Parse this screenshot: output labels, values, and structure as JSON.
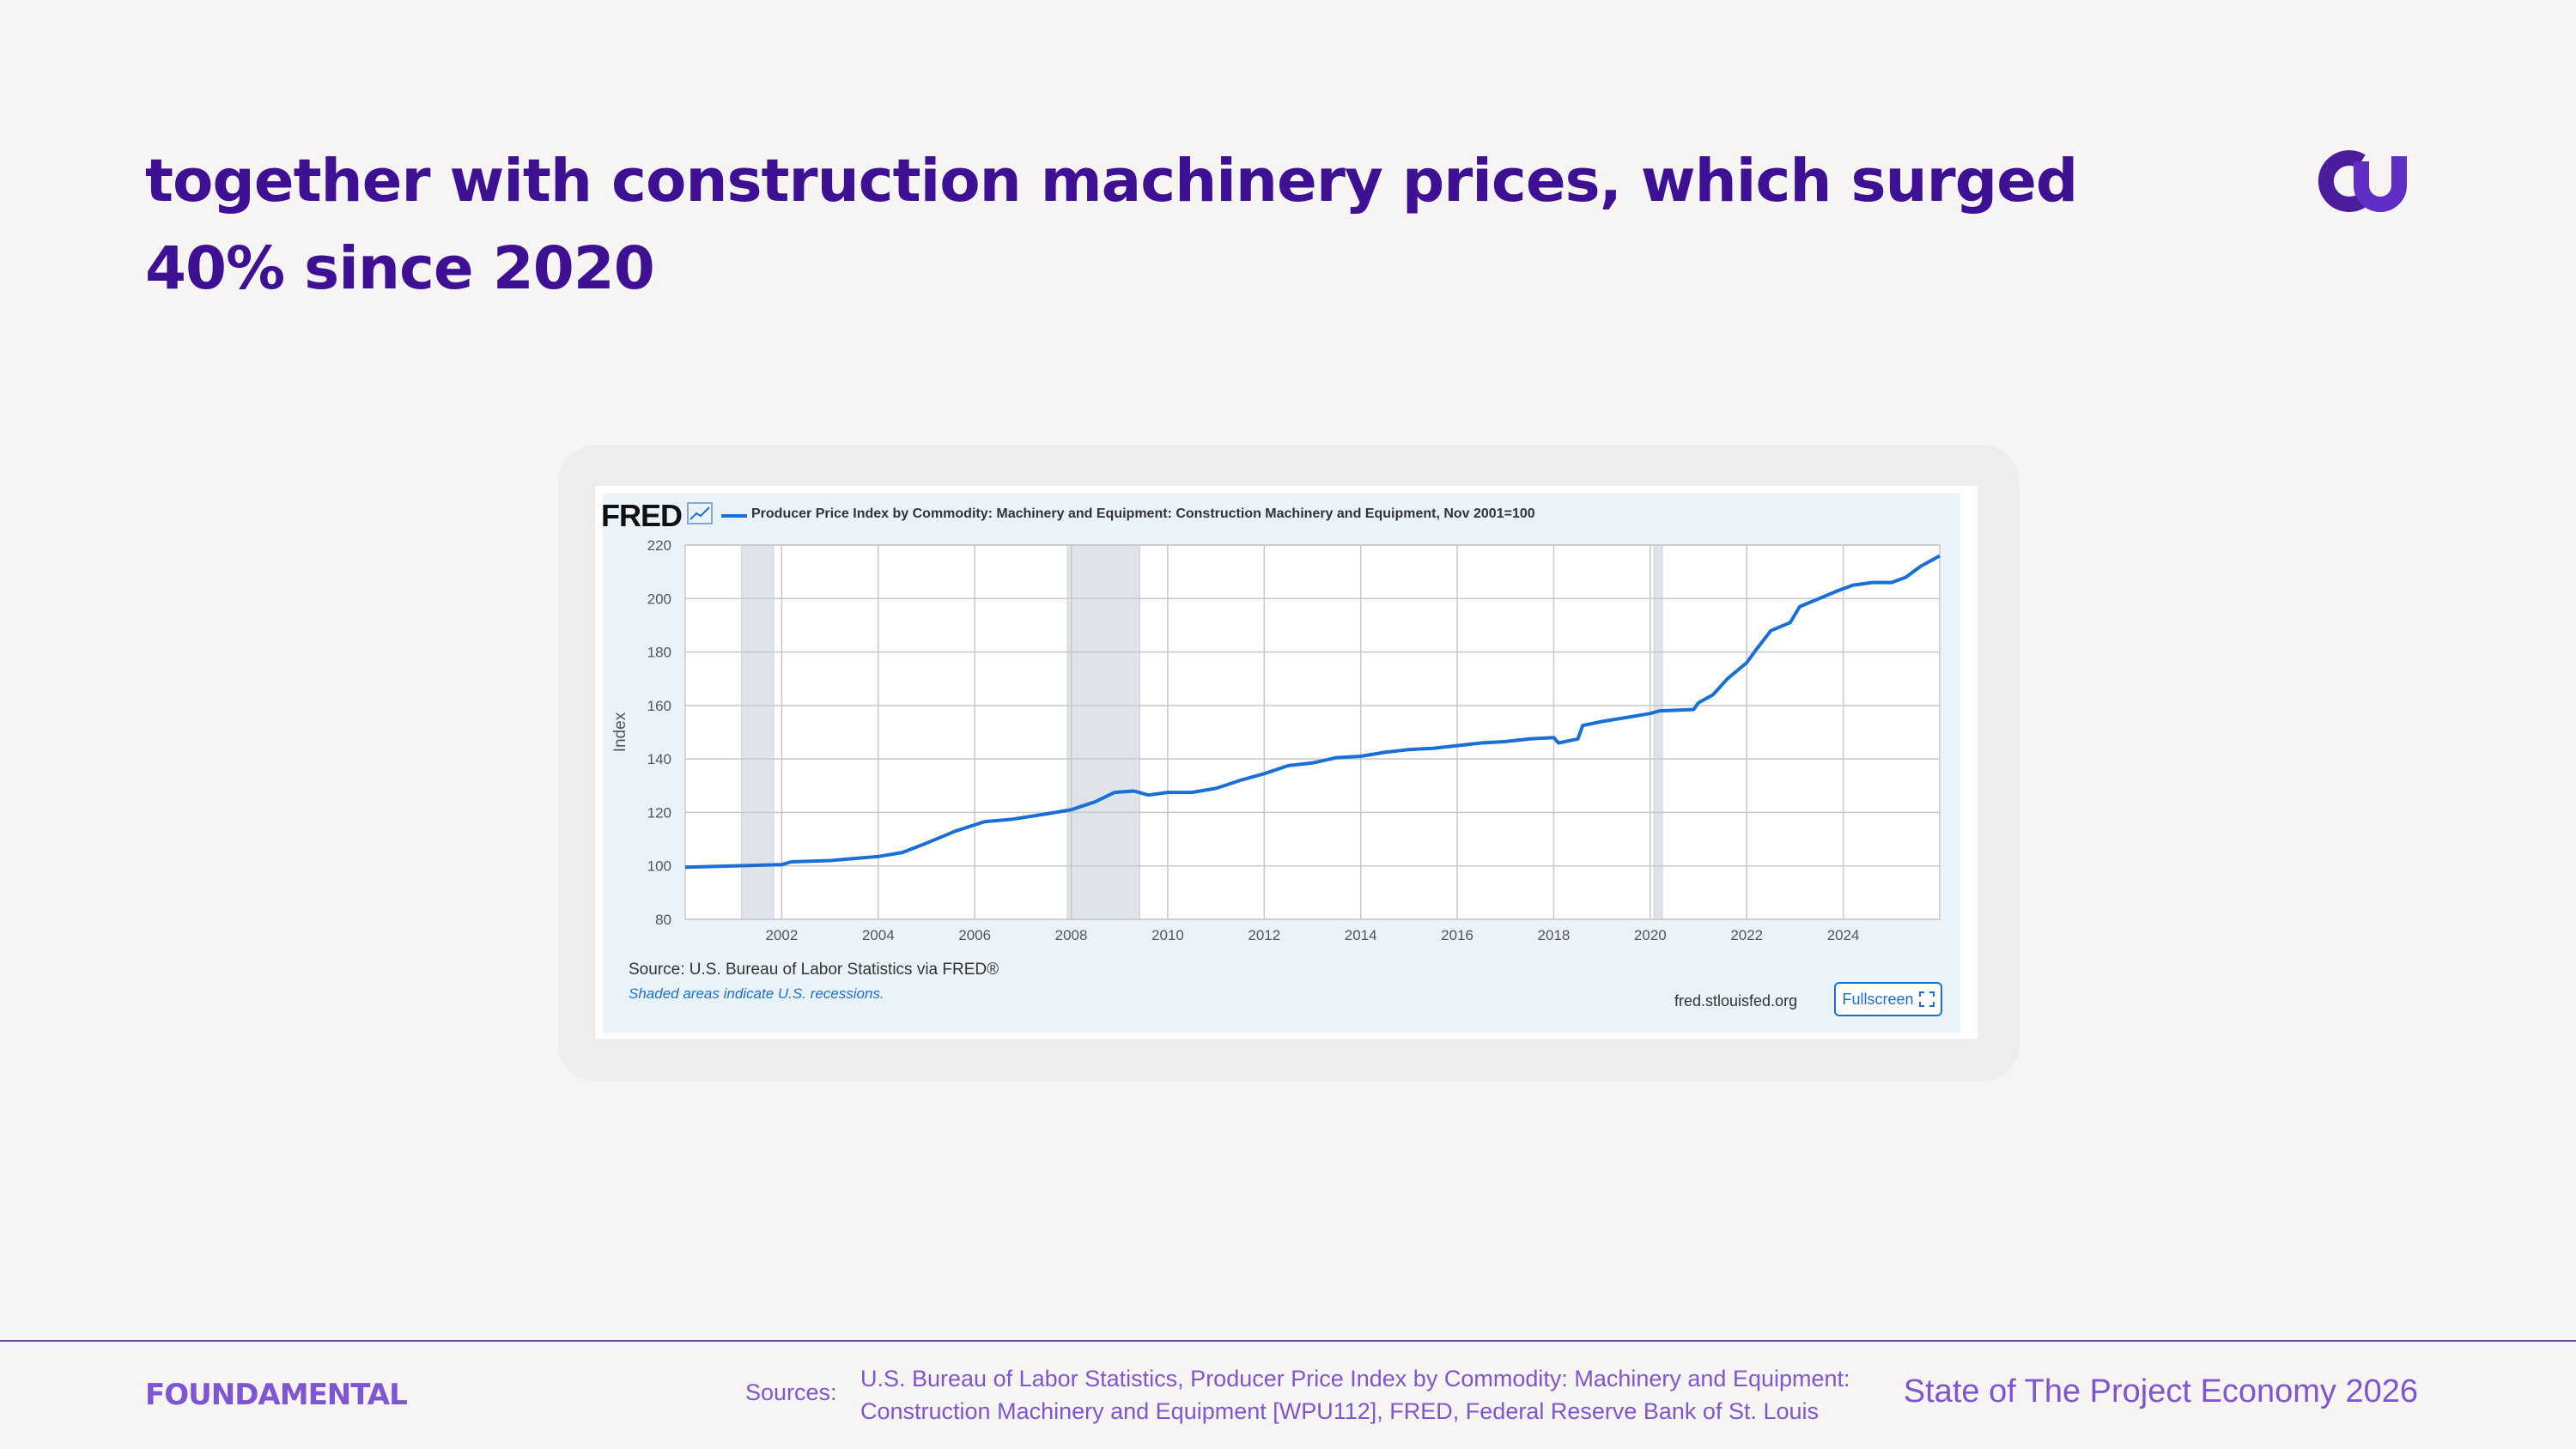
{
  "slide": {
    "headline": "together with construction machinery prices, which surged 40% since 2020",
    "brand_mark": "foundamental-logo-icon",
    "colors": {
      "headline": "#3e1093",
      "accent": "#7e55d2",
      "series": "#1a6fd6",
      "recession": "#dfe4ea"
    }
  },
  "fred": {
    "logo": "FRED",
    "graph_icon": "line-graph-icon",
    "source": "Source: U.S. Bureau of Labor Statistics via FRED®",
    "recession_note": "Shaded areas indicate U.S. recessions.",
    "site": "fred.stlouisfed.org",
    "fullscreen_label": "Fullscreen",
    "fullscreen_icon": "expand-icon"
  },
  "chart_data": {
    "type": "line",
    "title": "",
    "xlabel": "",
    "ylabel": "Index",
    "xlim": [
      2000.0,
      2026.0
    ],
    "ylim": [
      80,
      220
    ],
    "yticks": [
      80,
      100,
      120,
      140,
      160,
      180,
      200,
      220
    ],
    "xticks": [
      2002,
      2004,
      2006,
      2008,
      2010,
      2012,
      2014,
      2016,
      2018,
      2020,
      2022,
      2024
    ],
    "grid": true,
    "legend_position": "top-left",
    "recessions": [
      [
        2001.17,
        2001.83
      ],
      [
        2007.92,
        2009.42
      ],
      [
        2020.08,
        2020.25
      ]
    ],
    "series": [
      {
        "name": "Producer Price Index by Commodity: Machinery and Equipment: Construction Machinery and Equipment, Nov 2001=100",
        "color": "#1a6fd6",
        "points": [
          [
            2000.0,
            99.5
          ],
          [
            2001.0,
            100.0
          ],
          [
            2002.0,
            100.5
          ],
          [
            2002.2,
            101.5
          ],
          [
            2003.0,
            102.0
          ],
          [
            2004.0,
            103.5
          ],
          [
            2004.5,
            105.0
          ],
          [
            2005.0,
            108.5
          ],
          [
            2005.6,
            113.0
          ],
          [
            2006.2,
            116.5
          ],
          [
            2006.8,
            117.5
          ],
          [
            2007.5,
            119.5
          ],
          [
            2008.0,
            121.0
          ],
          [
            2008.5,
            124.0
          ],
          [
            2008.9,
            127.5
          ],
          [
            2009.3,
            128.0
          ],
          [
            2009.6,
            126.5
          ],
          [
            2010.0,
            127.5
          ],
          [
            2010.5,
            127.5
          ],
          [
            2011.0,
            129.0
          ],
          [
            2011.5,
            132.0
          ],
          [
            2012.0,
            134.5
          ],
          [
            2012.5,
            137.5
          ],
          [
            2013.0,
            138.5
          ],
          [
            2013.5,
            140.5
          ],
          [
            2014.0,
            141.0
          ],
          [
            2014.5,
            142.5
          ],
          [
            2015.0,
            143.5
          ],
          [
            2015.5,
            144.0
          ],
          [
            2016.0,
            145.0
          ],
          [
            2016.5,
            146.0
          ],
          [
            2017.0,
            146.5
          ],
          [
            2017.5,
            147.5
          ],
          [
            2018.0,
            148.0
          ],
          [
            2018.1,
            146.0
          ],
          [
            2018.5,
            147.5
          ],
          [
            2018.6,
            152.5
          ],
          [
            2019.0,
            154.0
          ],
          [
            2019.5,
            155.5
          ],
          [
            2020.0,
            157.0
          ],
          [
            2020.2,
            158.0
          ],
          [
            2020.9,
            158.5
          ],
          [
            2021.0,
            161.0
          ],
          [
            2021.3,
            164.0
          ],
          [
            2021.6,
            170.0
          ],
          [
            2022.0,
            176.0
          ],
          [
            2022.2,
            181.0
          ],
          [
            2022.5,
            188.0
          ],
          [
            2022.9,
            191.0
          ],
          [
            2023.1,
            197.0
          ],
          [
            2023.5,
            200.0
          ],
          [
            2023.9,
            203.0
          ],
          [
            2024.2,
            205.0
          ],
          [
            2024.6,
            206.0
          ],
          [
            2025.0,
            206.0
          ],
          [
            2025.3,
            208.0
          ],
          [
            2025.6,
            212.0
          ],
          [
            2026.0,
            216.0
          ]
        ]
      }
    ]
  },
  "footer": {
    "brand": "FOUNDAMENTAL",
    "sources_label": "Sources:",
    "sources_text": "U.S. Bureau of Labor Statistics, Producer Price Index by Commodity: Machinery and Equipment: Construction Machinery and Equipment [WPU112], FRED, Federal Reserve Bank of St. Louis",
    "report_title": "State of The Project Economy 2026"
  }
}
